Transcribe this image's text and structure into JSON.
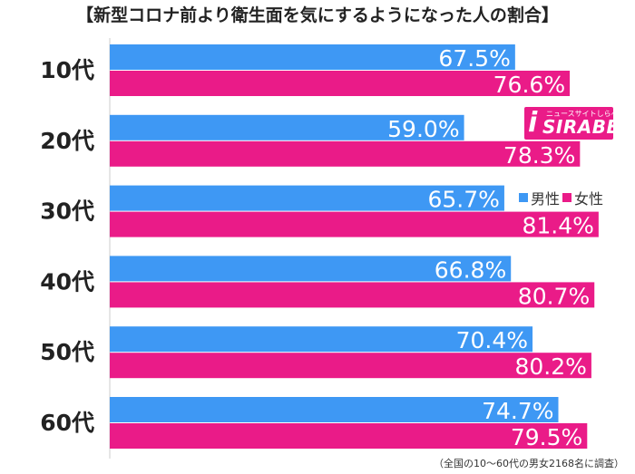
{
  "chart_data": {
    "type": "bar",
    "orientation": "horizontal",
    "title": "【新型コロナ前より衛生面を気にするようになった人の割合】",
    "categories": [
      "10代",
      "20代",
      "30代",
      "40代",
      "50代",
      "60代"
    ],
    "series": [
      {
        "name": "男性",
        "color": "#3e98f4",
        "values": [
          67.5,
          59.0,
          65.7,
          66.8,
          70.4,
          74.7
        ],
        "labels": [
          "67.5%",
          "59.0%",
          "65.7%",
          "66.8%",
          "70.4%",
          "74.7%"
        ]
      },
      {
        "name": "女性",
        "color": "#ea1b88",
        "values": [
          76.6,
          78.3,
          81.4,
          80.7,
          80.2,
          79.5
        ],
        "labels": [
          "76.6%",
          "78.3%",
          "81.4%",
          "80.7%",
          "80.2%",
          "79.5%"
        ]
      }
    ],
    "xlim": [
      0,
      100
    ],
    "grid": false,
    "legend": "right, inside plot"
  },
  "logo": {
    "main": "SIRABEE",
    "sub": "ニュースサイトしらべぇ",
    "mark": "i"
  },
  "note": "（全国の10～60代の男女2168名に調査）"
}
